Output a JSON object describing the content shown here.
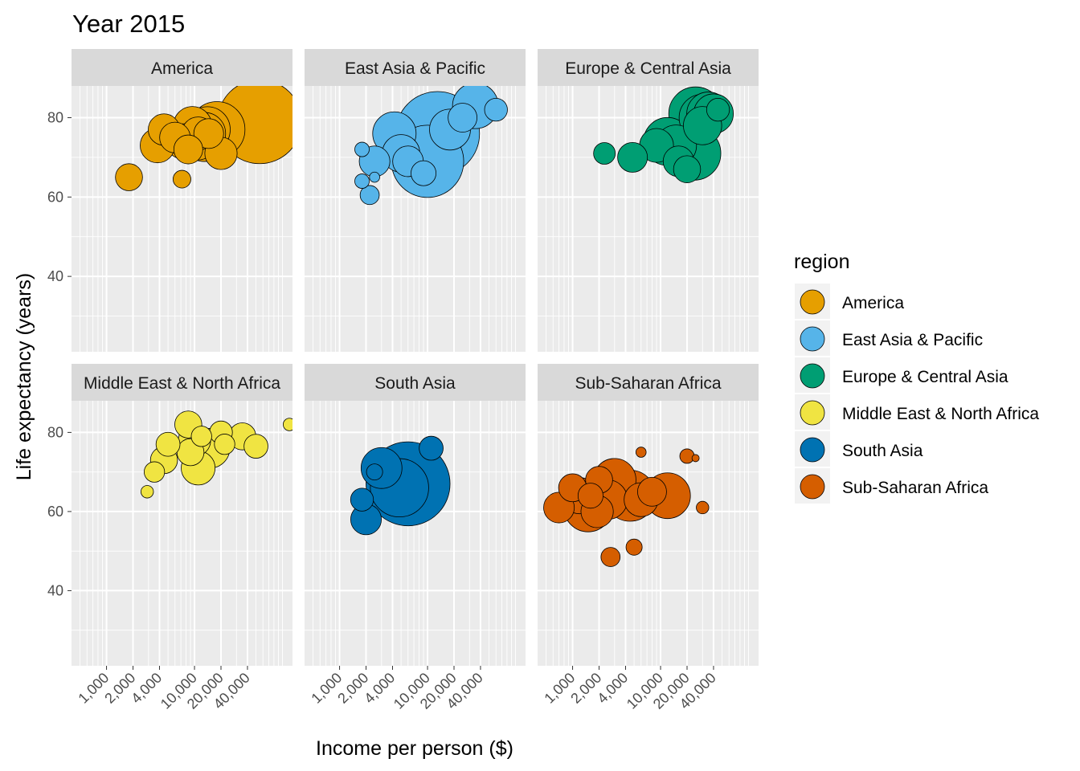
{
  "chart_data": {
    "type": "scatter",
    "title": "Year 2015",
    "xlabel": "Income per person ($)",
    "ylabel": "Life expectancy (years)",
    "x_scale": "log",
    "xlim": [
      400,
      130000
    ],
    "ylim": [
      21,
      88
    ],
    "x_ticks": [
      1000,
      2000,
      4000,
      10000,
      20000,
      40000
    ],
    "x_tick_labels": [
      "1,000",
      "2,000",
      "4,000",
      "10,000",
      "20,000",
      "40,000"
    ],
    "y_ticks": [
      40,
      60,
      80
    ],
    "y_tick_labels": [
      "40",
      "60",
      "80"
    ],
    "grid": true,
    "legend": {
      "title": "region",
      "position": "right"
    },
    "panels": [
      {
        "name": "America",
        "color": "#E69F00",
        "points": [
          {
            "x": 55000,
            "y": 79,
            "size": 135
          },
          {
            "x": 18000,
            "y": 77,
            "size": 60
          },
          {
            "x": 13000,
            "y": 75,
            "size": 44
          },
          {
            "x": 13000,
            "y": 76,
            "size": 34
          },
          {
            "x": 9500,
            "y": 78,
            "size": 28
          },
          {
            "x": 7500,
            "y": 74,
            "size": 24
          },
          {
            "x": 14000,
            "y": 77,
            "size": 40
          },
          {
            "x": 11000,
            "y": 74,
            "size": 26
          },
          {
            "x": 3800,
            "y": 73,
            "size": 23
          },
          {
            "x": 4500,
            "y": 77,
            "size": 19
          },
          {
            "x": 6000,
            "y": 75,
            "size": 18
          },
          {
            "x": 20000,
            "y": 71,
            "size": 20
          },
          {
            "x": 1800,
            "y": 65,
            "size": 14
          },
          {
            "x": 7200,
            "y": 64.5,
            "size": 6
          },
          {
            "x": 11000,
            "y": 76,
            "size": 21
          },
          {
            "x": 14500,
            "y": 76,
            "size": 17
          },
          {
            "x": 8500,
            "y": 72,
            "size": 16
          }
        ]
      },
      {
        "name": "East Asia & Pacific",
        "color": "#56B4E9",
        "points": [
          {
            "x": 13000,
            "y": 76,
            "size": 135
          },
          {
            "x": 10000,
            "y": 69,
            "size": 100
          },
          {
            "x": 4200,
            "y": 76,
            "size": 36
          },
          {
            "x": 18000,
            "y": 77,
            "size": 32
          },
          {
            "x": 35000,
            "y": 83,
            "size": 40
          },
          {
            "x": 5000,
            "y": 71,
            "size": 27
          },
          {
            "x": 2500,
            "y": 69,
            "size": 18
          },
          {
            "x": 6000,
            "y": 69,
            "size": 18
          },
          {
            "x": 9000,
            "y": 66,
            "size": 12
          },
          {
            "x": 2200,
            "y": 60.5,
            "size": 7
          },
          {
            "x": 1800,
            "y": 72,
            "size": 4
          },
          {
            "x": 1800,
            "y": 64,
            "size": 4
          },
          {
            "x": 2500,
            "y": 65,
            "size": 2
          },
          {
            "x": 25000,
            "y": 80,
            "size": 16
          },
          {
            "x": 60000,
            "y": 82,
            "size": 10
          }
        ]
      },
      {
        "name": "Europe & Central Asia",
        "color": "#009E73",
        "points": [
          {
            "x": 25000,
            "y": 81,
            "size": 55
          },
          {
            "x": 30000,
            "y": 80,
            "size": 42
          },
          {
            "x": 35000,
            "y": 81,
            "size": 36
          },
          {
            "x": 40000,
            "y": 81,
            "size": 30
          },
          {
            "x": 24000,
            "y": 71,
            "size": 55
          },
          {
            "x": 12000,
            "y": 74,
            "size": 44
          },
          {
            "x": 15000,
            "y": 73,
            "size": 32
          },
          {
            "x": 9000,
            "y": 73,
            "size": 22
          },
          {
            "x": 16000,
            "y": 69,
            "size": 18
          },
          {
            "x": 20000,
            "y": 67,
            "size": 14
          },
          {
            "x": 4800,
            "y": 70,
            "size": 17
          },
          {
            "x": 2300,
            "y": 71,
            "size": 9
          },
          {
            "x": 30000,
            "y": 78,
            "size": 28
          },
          {
            "x": 45000,
            "y": 82,
            "size": 10
          }
        ]
      },
      {
        "name": "Middle East & North Africa",
        "color": "#F0E442",
        "points": [
          {
            "x": 15000,
            "y": 76,
            "size": 30
          },
          {
            "x": 11000,
            "y": 71,
            "size": 22
          },
          {
            "x": 10000,
            "y": 78,
            "size": 20
          },
          {
            "x": 9000,
            "y": 75,
            "size": 14
          },
          {
            "x": 8500,
            "y": 82,
            "size": 14
          },
          {
            "x": 4500,
            "y": 73,
            "size": 14
          },
          {
            "x": 5000,
            "y": 77,
            "size": 11
          },
          {
            "x": 3500,
            "y": 70,
            "size": 8
          },
          {
            "x": 35000,
            "y": 79,
            "size": 14
          },
          {
            "x": 50000,
            "y": 76.5,
            "size": 11
          },
          {
            "x": 20000,
            "y": 80,
            "size": 10
          },
          {
            "x": 12000,
            "y": 79,
            "size": 8
          },
          {
            "x": 22000,
            "y": 77,
            "size": 8
          },
          {
            "x": 2900,
            "y": 65,
            "size": 3
          },
          {
            "x": 120000,
            "y": 82,
            "size": 3
          }
        ]
      },
      {
        "name": "South Asia",
        "color": "#0072B2",
        "points": [
          {
            "x": 6000,
            "y": 67,
            "size": 135
          },
          {
            "x": 3000,
            "y": 71,
            "size": 32
          },
          {
            "x": 4800,
            "y": 66,
            "size": 65
          },
          {
            "x": 2000,
            "y": 58,
            "size": 18
          },
          {
            "x": 11000,
            "y": 76,
            "size": 11
          },
          {
            "x": 1800,
            "y": 63,
            "size": 10
          },
          {
            "x": 2500,
            "y": 70,
            "size": 5
          }
        ]
      },
      {
        "name": "Sub-Saharan Africa",
        "color": "#D55E00",
        "points": [
          {
            "x": 1500,
            "y": 61,
            "size": 45
          },
          {
            "x": 4500,
            "y": 64,
            "size": 50
          },
          {
            "x": 3000,
            "y": 68,
            "size": 35
          },
          {
            "x": 2500,
            "y": 63,
            "size": 30
          },
          {
            "x": 1200,
            "y": 64,
            "size": 25
          },
          {
            "x": 1900,
            "y": 60,
            "size": 20
          },
          {
            "x": 12000,
            "y": 64,
            "size": 40
          },
          {
            "x": 6000,
            "y": 63,
            "size": 22
          },
          {
            "x": 8000,
            "y": 65,
            "size": 16
          },
          {
            "x": 700,
            "y": 61,
            "size": 18
          },
          {
            "x": 1000,
            "y": 66,
            "size": 15
          },
          {
            "x": 2000,
            "y": 68,
            "size": 14
          },
          {
            "x": 1600,
            "y": 64,
            "size": 12
          },
          {
            "x": 5000,
            "y": 51,
            "size": 5
          },
          {
            "x": 2700,
            "y": 48.5,
            "size": 7
          },
          {
            "x": 20000,
            "y": 74,
            "size": 4
          },
          {
            "x": 30000,
            "y": 61,
            "size": 3
          },
          {
            "x": 25000,
            "y": 73.5,
            "size": 1
          },
          {
            "x": 6000,
            "y": 75,
            "size": 2
          }
        ]
      }
    ]
  }
}
